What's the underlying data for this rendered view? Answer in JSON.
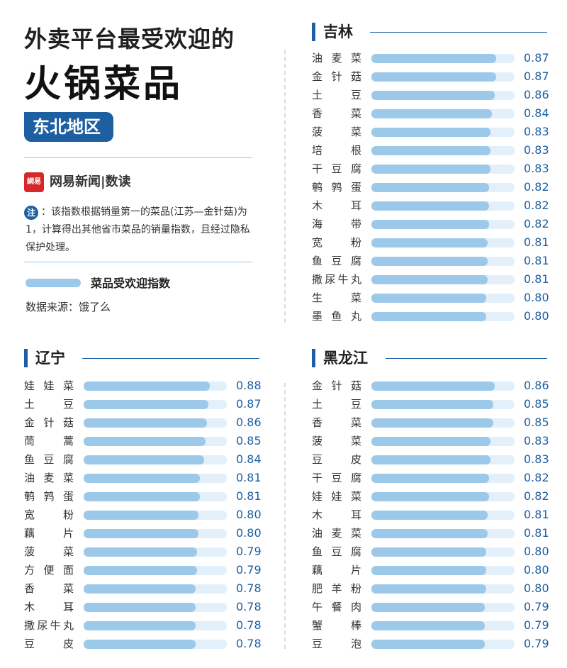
{
  "header": {
    "title_line1": "外卖平台最受欢迎的",
    "title_line2": "火锅菜品",
    "region": "东北地区"
  },
  "brand": {
    "logo_text": "網易",
    "name": "网易新闻|数读"
  },
  "note": {
    "mark": "注",
    "text": "：该指数根据销量第一的菜品(江苏—金针菇)为1，计算得出其他省市菜品的销量指数，且经过隐私保护处理。"
  },
  "legend": {
    "label": "菜品受欢迎指数"
  },
  "source": "数据来源：饿了么",
  "colors": {
    "accent": "#1d5fa0",
    "bar": "#9cc9ea",
    "track": "#e3f0fa"
  },
  "chart_data": [
    {
      "type": "bar",
      "title": "吉林",
      "categories": [
        "油麦菜",
        "金针菇",
        "土豆",
        "香菜",
        "菠菜",
        "培根",
        "干豆腐",
        "鹌鹑蛋",
        "木耳",
        "海带",
        "宽粉",
        "鱼豆腐",
        "撒尿牛丸",
        "生菜",
        "墨鱼丸"
      ],
      "values": [
        0.87,
        0.87,
        0.86,
        0.84,
        0.83,
        0.83,
        0.83,
        0.82,
        0.82,
        0.82,
        0.81,
        0.81,
        0.81,
        0.8,
        0.8
      ],
      "labels": [
        "0.87",
        "0.87",
        "0.86",
        "0.84",
        "0.83",
        "0.83",
        "0.83",
        "0.82",
        "0.82",
        "0.82",
        "0.81",
        "0.81",
        "0.81",
        "0.80",
        "0.80"
      ],
      "xlim": [
        0,
        1
      ]
    },
    {
      "type": "bar",
      "title": "辽宁",
      "categories": [
        "娃娃菜",
        "土豆",
        "金针菇",
        "茼蒿",
        "鱼豆腐",
        "油麦菜",
        "鹌鹑蛋",
        "宽粉",
        "藕片",
        "菠菜",
        "方便面",
        "香菜",
        "木耳",
        "撒尿牛丸",
        "豆皮"
      ],
      "values": [
        0.88,
        0.87,
        0.86,
        0.85,
        0.84,
        0.81,
        0.81,
        0.8,
        0.8,
        0.79,
        0.79,
        0.78,
        0.78,
        0.78,
        0.78
      ],
      "labels": [
        "0.88",
        "0.87",
        "0.86",
        "0.85",
        "0.84",
        "0.81",
        "0.81",
        "0.80",
        "0.80",
        "0.79",
        "0.79",
        "0.78",
        "0.78",
        "0.78",
        "0.78"
      ],
      "xlim": [
        0,
        1
      ]
    },
    {
      "type": "bar",
      "title": "黑龙江",
      "categories": [
        "金针菇",
        "土豆",
        "香菜",
        "菠菜",
        "豆皮",
        "干豆腐",
        "娃娃菜",
        "木耳",
        "油麦菜",
        "鱼豆腐",
        "藕片",
        "肥羊粉",
        "午餐肉",
        "蟹棒",
        "豆泡"
      ],
      "values": [
        0.86,
        0.85,
        0.85,
        0.83,
        0.83,
        0.82,
        0.82,
        0.81,
        0.81,
        0.8,
        0.8,
        0.8,
        0.79,
        0.79,
        0.79
      ],
      "labels": [
        "0.86",
        "0.85",
        "0.85",
        "0.83",
        "0.83",
        "0.82",
        "0.82",
        "0.81",
        "0.81",
        "0.80",
        "0.80",
        "0.80",
        "0.79",
        "0.79",
        "0.79"
      ],
      "xlim": [
        0,
        1
      ]
    }
  ]
}
